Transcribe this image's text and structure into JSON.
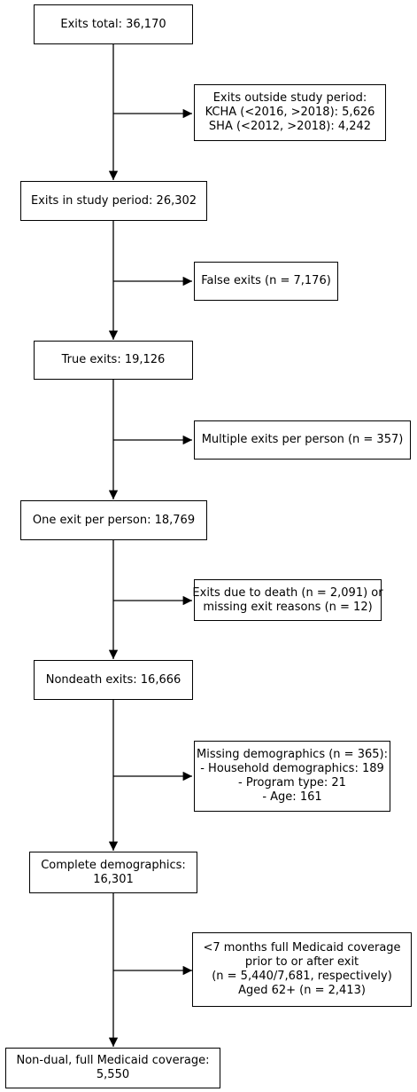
{
  "boxes": {
    "exits_total": [
      "Exits total: 36,170"
    ],
    "outside_study": [
      "Exits outside study period:",
      "KCHA (<2016, >2018): 5,626",
      "SHA (<2012, >2018): 4,242"
    ],
    "study_period": [
      "Exits in study period: 26,302"
    ],
    "false_exits": [
      "False exits (n = 7,176)"
    ],
    "true_exits": [
      "True exits: 19,126"
    ],
    "multiple_exits": [
      "Multiple exits per person (n = 357)"
    ],
    "one_exit": [
      "One exit per person: 18,769"
    ],
    "death_exits": [
      "Exits due to death (n = 2,091) or",
      "missing exit reasons (n = 12)"
    ],
    "nondeath": [
      "Nondeath exits: 16,666"
    ],
    "missing_demo": [
      "Missing demographics (n = 365):",
      "- Household demographics: 189",
      "- Program type: 21",
      "- Age: 161"
    ],
    "complete_demo": [
      "Complete demographics:",
      "16,301"
    ],
    "medicaid_excl": [
      "<7 months full Medicaid coverage",
      "prior to or after exit",
      "(n = 5,440/7,681, respectively)",
      "Aged 62+ (n = 2,413)"
    ],
    "final": [
      "Non-dual, full Medicaid coverage:",
      "5,550"
    ]
  }
}
